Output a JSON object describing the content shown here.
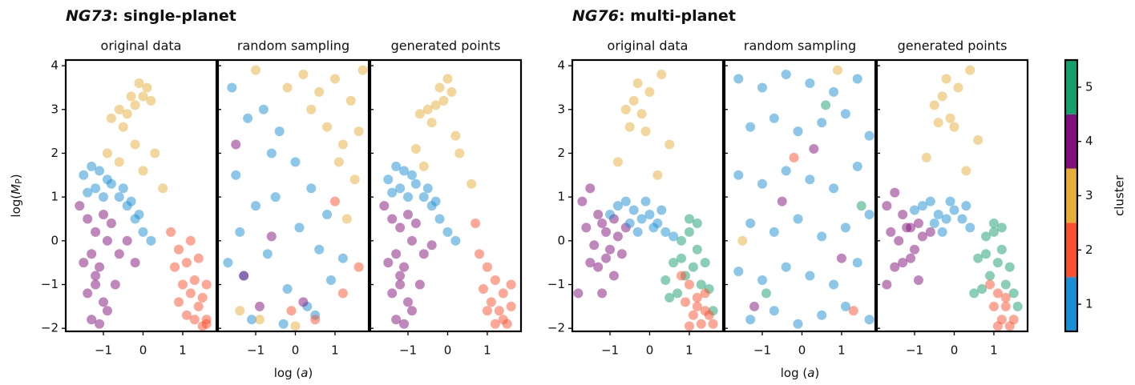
{
  "figure_titles": [
    {
      "emph": "NG73",
      "text": ": single-planet"
    },
    {
      "emph": "NG76",
      "text": ": multi-planet"
    }
  ],
  "chart_data": [
    {
      "type": "scatter",
      "title": "original data",
      "ylabel": {
        "prefix": "log(",
        "symbol": "M",
        "subscript": "P",
        "suffix": ")"
      },
      "xlim": [
        -1.95,
        1.85
      ],
      "ylim": [
        -2.07,
        4.13
      ],
      "xticks": [
        {
          "value": -1,
          "label": "−1"
        },
        0,
        1
      ],
      "yticks": [
        {
          "value": -2,
          "label": "−2"
        },
        {
          "value": -1,
          "label": "−1"
        },
        0,
        1,
        2,
        3,
        4
      ],
      "ytick_labels": true,
      "series": [
        {
          "cluster": 3,
          "x": [
            -0.8,
            -0.6,
            -0.4,
            -0.2,
            0,
            0.1,
            -0.5,
            -0.3,
            -0.1,
            0.2,
            -0.9,
            -0.2,
            0.3,
            0.5,
            -0.6,
            0
          ],
          "y": [
            2.8,
            3.0,
            2.9,
            3.1,
            3.3,
            3.5,
            2.6,
            3.3,
            3.6,
            3.2,
            2.0,
            2.2,
            2.0,
            1.2,
            1.8,
            1.6
          ]
        },
        {
          "cluster": 1,
          "x": [
            -1.5,
            -1.3,
            -1.1,
            -0.9,
            -1.4,
            -1.2,
            -1.0,
            -0.8,
            -0.6,
            -0.4,
            -0.2,
            0.0,
            0.2,
            -0.5,
            -0.3,
            -0.1
          ],
          "y": [
            1.5,
            1.7,
            1.6,
            1.4,
            1.1,
            1.2,
            1.0,
            1.3,
            1.0,
            0.8,
            0.5,
            0.2,
            0.0,
            1.2,
            0.9,
            0.6
          ]
        },
        {
          "cluster": 4,
          "x": [
            -1.6,
            -1.4,
            -1.2,
            -1.0,
            -0.8,
            -1.5,
            -1.3,
            -1.1,
            -0.9,
            -1.4,
            -1.2,
            -1.0,
            -1.3,
            -1.1,
            -0.9,
            -0.6,
            -0.4,
            -0.2,
            -0.7,
            -1.2
          ],
          "y": [
            0.8,
            0.5,
            0.2,
            0.6,
            0.4,
            -0.5,
            -0.3,
            -0.6,
            0.0,
            -1.2,
            -1.0,
            -1.4,
            -1.8,
            -1.9,
            -1.6,
            -0.3,
            0.0,
            -0.5,
            -1.0,
            -0.8
          ]
        },
        {
          "cluster": 2,
          "x": [
            0.7,
            0.9,
            1.1,
            1.3,
            1.5,
            1.6,
            0.8,
            1.0,
            1.2,
            1.4,
            1.6,
            1.1,
            1.3,
            1.5,
            0.9,
            1.2,
            1.4,
            1.6
          ],
          "y": [
            0.2,
            -0.2,
            -0.5,
            -0.9,
            -1.3,
            -1.8,
            -0.6,
            -1.0,
            -1.2,
            -1.5,
            -1.9,
            -1.7,
            -1.8,
            -1.95,
            -1.4,
            0.0,
            -0.4,
            -1.0
          ]
        }
      ]
    },
    {
      "type": "scatter",
      "title": "random sampling",
      "xlabel": {
        "prefix": "log (",
        "symbol": "a",
        "suffix": ")"
      },
      "xlim": [
        -1.95,
        1.85
      ],
      "ylim": [
        -2.07,
        4.13
      ],
      "xticks": [
        {
          "value": -1,
          "label": "−1"
        },
        0,
        1
      ],
      "yticks": [
        -2,
        -1,
        0,
        1,
        2,
        3,
        4
      ],
      "ytick_labels": false,
      "series": [
        {
          "cluster": 1,
          "x": [
            -1.6,
            -1.2,
            -0.8,
            -0.4,
            0,
            0.4,
            -1.5,
            -1.0,
            -0.5,
            0.1,
            0.6,
            -1.7,
            -1.3,
            -0.7,
            -0.2,
            0.3,
            0.9,
            -1.1,
            -0.3,
            0.5,
            -1.4,
            -0.6,
            1.2,
            0.8
          ],
          "y": [
            3.5,
            2.8,
            3.0,
            2.5,
            1.8,
            1.2,
            1.5,
            0.8,
            1.0,
            0.3,
            -0.2,
            -0.5,
            -0.8,
            -0.3,
            -1.1,
            -1.5,
            -0.9,
            -1.8,
            -1.9,
            -1.7,
            0.2,
            2.0,
            -0.4,
            0.6
          ]
        },
        {
          "cluster": 3,
          "x": [
            0.2,
            0.6,
            1.0,
            1.4,
            1.7,
            0.8,
            1.2,
            1.6,
            1.5,
            1.1,
            0.4,
            -0.2,
            -1.4,
            -0.9,
            1.3,
            -1.0,
            0.0
          ],
          "y": [
            3.8,
            3.4,
            3.7,
            3.2,
            3.9,
            2.6,
            2.2,
            2.5,
            1.4,
            1.8,
            3.0,
            3.5,
            -1.6,
            -1.8,
            0.5,
            3.9,
            -1.95
          ]
        },
        {
          "cluster": 4,
          "x": [
            -1.3,
            -0.6,
            0.2,
            -1.5,
            -0.9
          ],
          "y": [
            -0.8,
            0.1,
            -1.4,
            2.2,
            -1.5
          ]
        },
        {
          "cluster": 2,
          "x": [
            1.2,
            0.5,
            1.6,
            -0.1,
            1.0
          ],
          "y": [
            -1.2,
            -1.8,
            -0.6,
            -1.6,
            0.9
          ]
        }
      ]
    },
    {
      "type": "scatter",
      "title": "generated points",
      "xlim": [
        -1.95,
        1.85
      ],
      "ylim": [
        -2.07,
        4.13
      ],
      "xticks": [
        {
          "value": -1,
          "label": "−1"
        },
        0,
        1
      ],
      "yticks": [
        -2,
        -1,
        0,
        1,
        2,
        3,
        4
      ],
      "ytick_labels": false,
      "series": [
        {
          "cluster": 3,
          "x": [
            -0.7,
            -0.5,
            -0.3,
            -0.1,
            0.1,
            -0.4,
            -0.2,
            0.0,
            -0.8,
            0.3,
            0.6,
            -0.6,
            0.2
          ],
          "y": [
            2.9,
            3.0,
            3.1,
            3.2,
            3.4,
            2.7,
            3.5,
            3.7,
            2.1,
            2.0,
            1.3,
            1.7,
            2.4
          ]
        },
        {
          "cluster": 1,
          "x": [
            -1.5,
            -1.3,
            -1.1,
            -0.9,
            -1.4,
            -1.2,
            -1.0,
            -0.8,
            -0.6,
            -0.4,
            -0.2,
            0.0,
            0.2,
            -0.5,
            -0.3
          ],
          "y": [
            1.4,
            1.7,
            1.6,
            1.5,
            1.1,
            1.2,
            1.0,
            1.3,
            1.0,
            0.8,
            0.5,
            0.2,
            0.0,
            1.2,
            0.9
          ]
        },
        {
          "cluster": 4,
          "x": [
            -1.6,
            -1.4,
            -1.2,
            -1.0,
            -0.8,
            -1.5,
            -1.3,
            -1.1,
            -0.9,
            -1.4,
            -1.2,
            -1.0,
            -1.3,
            -1.1,
            -0.9,
            -0.6,
            -0.4,
            -0.7,
            -1.2
          ],
          "y": [
            0.8,
            0.5,
            0.3,
            0.6,
            0.4,
            -0.5,
            -0.3,
            -0.6,
            0.0,
            -1.2,
            -1.0,
            -1.4,
            -1.8,
            -1.9,
            -1.6,
            -0.3,
            -0.1,
            -1.0,
            -0.8
          ]
        },
        {
          "cluster": 2,
          "x": [
            0.8,
            1.0,
            1.2,
            1.4,
            1.6,
            0.9,
            1.1,
            1.3,
            1.5,
            1.2,
            1.4,
            1.0,
            0.7,
            1.6
          ],
          "y": [
            -0.3,
            -0.6,
            -0.9,
            -1.2,
            -1.5,
            -1.1,
            -1.4,
            -1.6,
            -1.9,
            -1.9,
            -1.8,
            -1.6,
            0.4,
            -1.0
          ]
        }
      ]
    },
    {
      "type": "scatter",
      "title": "original data",
      "xlim": [
        -1.95,
        1.85
      ],
      "ylim": [
        -2.07,
        4.13
      ],
      "xticks": [
        {
          "value": -1,
          "label": "−1"
        },
        0,
        1
      ],
      "yticks": [
        {
          "value": -2,
          "label": "−2"
        },
        {
          "value": -1,
          "label": "−1"
        },
        0,
        1,
        2,
        3,
        4
      ],
      "ytick_labels": true,
      "series": [
        {
          "cluster": 3,
          "x": [
            -0.6,
            -0.4,
            -0.2,
            0,
            -0.3,
            -0.5,
            -0.1,
            0.3,
            0.5,
            -0.8,
            0.2
          ],
          "y": [
            3.0,
            3.2,
            2.9,
            3.4,
            3.6,
            2.6,
            2.5,
            3.8,
            2.2,
            1.8,
            1.5
          ]
        },
        {
          "cluster": 4,
          "x": [
            -1.7,
            -1.5,
            -1.3,
            -1.1,
            -0.9,
            -1.6,
            -1.4,
            -1.2,
            -1.0,
            -0.8,
            -0.6,
            -1.5,
            -1.3,
            -1.1,
            -0.9,
            -0.7,
            -1.8,
            -1.2
          ],
          "y": [
            0.9,
            1.2,
            0.6,
            0.2,
            0.5,
            0.3,
            -0.1,
            0.4,
            -0.2,
            0.1,
            0.3,
            -0.5,
            -0.6,
            -0.4,
            -0.8,
            -0.3,
            -1.2,
            -1.2
          ]
        },
        {
          "cluster": 1,
          "x": [
            -1.0,
            -0.8,
            -0.6,
            -0.4,
            -0.2,
            0,
            0.2,
            0.4,
            -0.5,
            -0.1,
            0.3,
            0.6,
            -0.3,
            0.1
          ],
          "y": [
            0.6,
            0.8,
            0.9,
            0.7,
            0.5,
            0.6,
            0.4,
            0.2,
            0.4,
            0.9,
            0.7,
            0.1,
            0.2,
            0.3
          ]
        },
        {
          "cluster": 5,
          "x": [
            0.6,
            0.8,
            1.0,
            1.2,
            1.4,
            0.9,
            1.1,
            1.3,
            0.7,
            0.5,
            1.5,
            1.0,
            0.8,
            1.2,
            1.6,
            0.4
          ],
          "y": [
            -0.5,
            0.0,
            0.2,
            -0.2,
            -0.5,
            -0.8,
            -0.6,
            -1.0,
            -1.2,
            -1.3,
            -1.1,
            0.5,
            -0.4,
            0.4,
            -1.6,
            -0.9
          ]
        },
        {
          "cluster": 2,
          "x": [
            0.8,
            1.0,
            1.2,
            1.4,
            1.6,
            0.9,
            1.1,
            1.3,
            1.5,
            1.0,
            1.2,
            1.4
          ],
          "y": [
            -0.8,
            -1.0,
            -1.3,
            -1.6,
            -1.9,
            -1.4,
            -1.7,
            -1.9,
            -1.7,
            -1.95,
            -1.5,
            -1.2
          ]
        }
      ]
    },
    {
      "type": "scatter",
      "title": "random sampling",
      "xlabel": {
        "prefix": "log (",
        "symbol": "a",
        "suffix": ")"
      },
      "xlim": [
        -1.95,
        1.85
      ],
      "ylim": [
        -2.07,
        4.13
      ],
      "xticks": [
        {
          "value": -1,
          "label": "−1"
        },
        0,
        1
      ],
      "yticks": [
        -2,
        -1,
        0,
        1,
        2,
        3,
        4
      ],
      "ytick_labels": false,
      "series": [
        {
          "cluster": 1,
          "x": [
            -1.6,
            -1.0,
            -0.4,
            0.2,
            0.8,
            1.4,
            -1.3,
            -0.7,
            -0.1,
            0.5,
            1.1,
            1.7,
            -1.6,
            -1.0,
            -0.4,
            0.2,
            0.8,
            1.4,
            -1.3,
            -0.7,
            -0.1,
            0.5,
            1.1,
            1.7,
            -1.6,
            -1.0,
            -0.4,
            0.2,
            0.8,
            1.4,
            -1.3,
            -0.7,
            -0.1,
            0.5,
            1.1,
            1.7
          ],
          "y": [
            3.7,
            3.5,
            3.8,
            3.6,
            3.4,
            3.7,
            2.6,
            2.8,
            2.5,
            2.7,
            2.9,
            2.4,
            1.5,
            1.3,
            1.6,
            1.4,
            1.2,
            1.7,
            0.4,
            0.2,
            0.5,
            0.1,
            0.3,
            0.6,
            -0.7,
            -0.9,
            -0.6,
            -0.8,
            -1.0,
            -0.5,
            -1.8,
            -1.6,
            -1.9,
            -1.7,
            -1.5,
            -1.8
          ]
        },
        {
          "cluster": 4,
          "x": [
            -1.2,
            0.3,
            1.0,
            -0.5
          ],
          "y": [
            -1.5,
            2.1,
            -0.4,
            0.9
          ]
        },
        {
          "cluster": 5,
          "x": [
            0.6,
            -0.9,
            1.5
          ],
          "y": [
            3.1,
            -1.2,
            0.8
          ]
        },
        {
          "cluster": 2,
          "x": [
            1.3,
            -0.2
          ],
          "y": [
            -1.6,
            1.9
          ]
        },
        {
          "cluster": 3,
          "x": [
            -1.5,
            0.9
          ],
          "y": [
            0.0,
            3.9
          ]
        }
      ]
    },
    {
      "type": "scatter",
      "title": "generated points",
      "xlim": [
        -1.95,
        1.85
      ],
      "ylim": [
        -2.07,
        4.13
      ],
      "xticks": [
        {
          "value": -1,
          "label": "−1"
        },
        0,
        1
      ],
      "yticks": [
        -2,
        -1,
        0,
        1,
        2,
        3,
        4
      ],
      "ytick_labels": false,
      "series": [
        {
          "cluster": 3,
          "x": [
            -0.5,
            -0.3,
            -0.1,
            0.1,
            -0.2,
            -0.4,
            0.0,
            0.4,
            0.6,
            -0.7,
            0.3
          ],
          "y": [
            3.1,
            3.3,
            2.8,
            3.5,
            3.7,
            2.7,
            2.6,
            3.9,
            2.3,
            1.9,
            1.6
          ]
        },
        {
          "cluster": 4,
          "x": [
            -1.7,
            -1.5,
            -1.3,
            -1.1,
            -0.9,
            -1.6,
            -1.4,
            -1.2,
            -1.0,
            -0.8,
            -0.6,
            -1.5,
            -1.3,
            -1.1,
            -0.9,
            -1.7
          ],
          "y": [
            0.8,
            1.1,
            0.6,
            0.3,
            0.4,
            0.2,
            0.0,
            0.3,
            -0.2,
            0.1,
            0.2,
            -0.6,
            -0.5,
            -0.4,
            -0.9,
            -1.0
          ]
        },
        {
          "cluster": 1,
          "x": [
            -1.0,
            -0.8,
            -0.6,
            -0.4,
            -0.2,
            0,
            0.2,
            0.4,
            -0.5,
            -0.1,
            0.3,
            -0.3
          ],
          "y": [
            0.7,
            0.8,
            0.9,
            0.6,
            0.5,
            0.7,
            0.5,
            0.3,
            0.4,
            0.9,
            0.8,
            0.2
          ]
        },
        {
          "cluster": 5,
          "x": [
            0.6,
            0.8,
            1.0,
            1.2,
            1.4,
            0.9,
            1.1,
            1.3,
            0.7,
            0.5,
            1.5,
            1.0,
            0.8,
            1.2,
            1.6
          ],
          "y": [
            -0.4,
            0.1,
            0.2,
            -0.2,
            -0.6,
            -0.8,
            -0.5,
            -1.0,
            -1.1,
            -1.2,
            -1.2,
            0.4,
            -0.3,
            0.3,
            -1.5
          ]
        },
        {
          "cluster": 2,
          "x": [
            0.9,
            1.1,
            1.3,
            1.5,
            1.0,
            1.2,
            1.4,
            1.1,
            1.3
          ],
          "y": [
            -1.0,
            -1.2,
            -1.5,
            -1.8,
            -1.5,
            -1.8,
            -1.95,
            -1.95,
            -1.3
          ]
        }
      ]
    }
  ],
  "colorbar": {
    "label": "cluster",
    "lim": [
      0.5,
      5.5
    ],
    "ticks": [
      1,
      2,
      3,
      4,
      5
    ],
    "colors": [
      "#1a8fd6",
      "#fc4f30",
      "#e5ae38",
      "#810f7c",
      "#15a06b"
    ]
  }
}
